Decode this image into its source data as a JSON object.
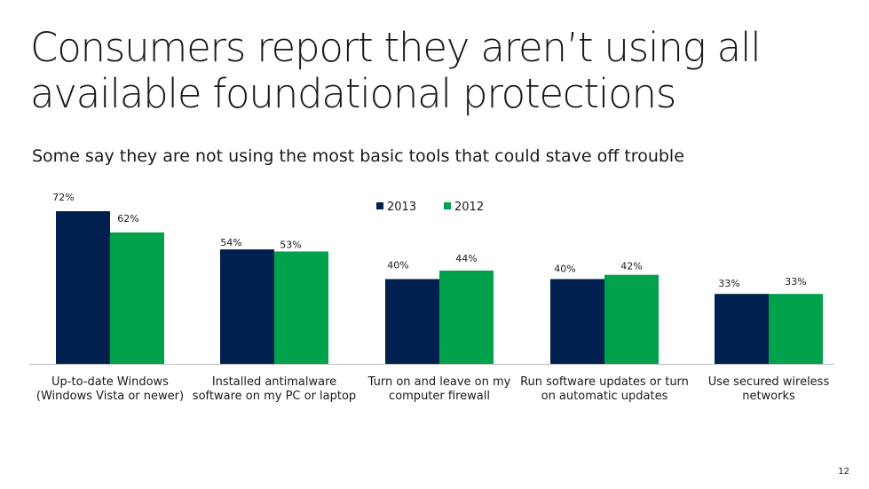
{
  "slide": {
    "title": "Consumers report they aren’t using all available foundational protections",
    "subtitle": "Some say they are not using the most basic tools that could stave off trouble",
    "page_number": "12"
  },
  "colors": {
    "series_2013": "#00204f",
    "series_2012": "#00a14b"
  },
  "chart_data": {
    "type": "bar",
    "categories": [
      "Up-to-date Windows (Windows Vista or newer)",
      "Installed antimalware software on my PC or laptop",
      "Turn on and leave on my computer firewall",
      "Run software updates or turn on automatic updates",
      "Use secured wireless networks"
    ],
    "category_lines": [
      [
        "Up-to-date Windows",
        "(Windows Vista or newer)"
      ],
      [
        "Installed antimalware",
        "software on my PC or laptop"
      ],
      [
        "Turn on and leave on my",
        "computer firewall"
      ],
      [
        "Run software updates or turn",
        "on automatic updates"
      ],
      [
        "Use secured wireless",
        "networks"
      ]
    ],
    "series": [
      {
        "name": "2013",
        "values": [
          72,
          54,
          40,
          40,
          33
        ],
        "labels": [
          "72%",
          "54%",
          "40%",
          "40%",
          "33%"
        ],
        "color": "#00204f"
      },
      {
        "name": "2012",
        "values": [
          62,
          53,
          44,
          42,
          33
        ],
        "labels": [
          "62%",
          "53%",
          "44%",
          "42%",
          "33%"
        ],
        "color": "#00a14b"
      }
    ],
    "ylim": [
      0,
      72
    ],
    "grid": false,
    "legend": "top-center"
  }
}
